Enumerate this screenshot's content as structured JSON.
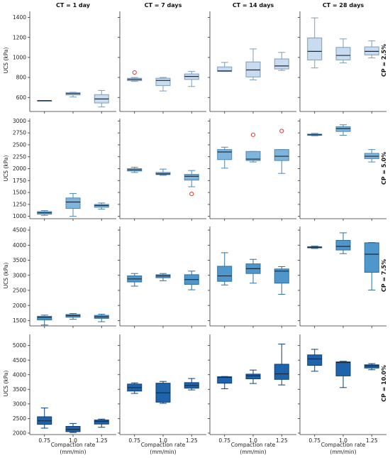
{
  "figure": {
    "column_titles": [
      "CT = 1 day",
      "CT = 7 days",
      "CT = 14 days",
      "CT = 28 days"
    ],
    "row_titles": [
      "CP = 2.5%",
      "CP = 5.0%",
      "CP = 7.5%",
      "CP = 10.0%"
    ],
    "ylabel": "UCS (kPa)",
    "xlabel_line1": "Compaction rate",
    "xlabel_line2": "(mm/min)",
    "x_tick_labels": [
      "0.75",
      "1.0",
      "1.25"
    ],
    "row_fill_colors": [
      "#c9dcef",
      "#80b5db",
      "#4f97cb",
      "#1f64ab"
    ],
    "row_stroke_colors": [
      "#7d9cbc",
      "#4f88b4",
      "#2e6e9e",
      "#0d3f78"
    ],
    "outlier_color": "#e03a2f"
  },
  "chart_data": [
    {
      "type": "box",
      "row": 0,
      "ylim": [
        460,
        1460
      ],
      "yticks": [
        600,
        800,
        1000,
        1200,
        1400
      ],
      "categories": [
        "0.75",
        "1.0",
        "1.25"
      ],
      "panels": [
        {
          "column": "CT = 1 day",
          "boxes": [
            {
              "whislo": 568,
              "q1": 568,
              "med": 568,
              "q3": 570,
              "whishi": 570,
              "fliers": []
            },
            {
              "whislo": 605,
              "q1": 625,
              "med": 638,
              "q3": 648,
              "whishi": 652,
              "fliers": []
            },
            {
              "whislo": 505,
              "q1": 545,
              "med": 585,
              "q3": 628,
              "whishi": 670,
              "fliers": []
            }
          ]
        },
        {
          "column": "CT = 7 days",
          "boxes": [
            {
              "whislo": 760,
              "q1": 768,
              "med": 780,
              "q3": 792,
              "whishi": 800,
              "fliers": [
                850
              ]
            },
            {
              "whislo": 665,
              "q1": 718,
              "med": 770,
              "q3": 792,
              "whishi": 800,
              "fliers": []
            },
            {
              "whislo": 710,
              "q1": 780,
              "med": 810,
              "q3": 835,
              "whishi": 860,
              "fliers": []
            }
          ]
        },
        {
          "column": "CT = 14 days",
          "boxes": [
            {
              "whislo": 860,
              "q1": 860,
              "med": 865,
              "q3": 905,
              "whishi": 950,
              "fliers": []
            },
            {
              "whislo": 775,
              "q1": 805,
              "med": 875,
              "q3": 955,
              "whishi": 1085,
              "fliers": []
            },
            {
              "whislo": 870,
              "q1": 885,
              "med": 915,
              "q3": 985,
              "whishi": 1050,
              "fliers": []
            }
          ]
        },
        {
          "column": "CT = 28 days",
          "boxes": [
            {
              "whislo": 895,
              "q1": 975,
              "med": 1060,
              "q3": 1195,
              "whishi": 1395,
              "fliers": []
            },
            {
              "whislo": 945,
              "q1": 975,
              "med": 1020,
              "q3": 1100,
              "whishi": 1185,
              "fliers": []
            },
            {
              "whislo": 995,
              "q1": 1025,
              "med": 1060,
              "q3": 1105,
              "whishi": 1165,
              "fliers": []
            }
          ]
        }
      ]
    },
    {
      "type": "box",
      "row": 1,
      "ylim": [
        950,
        3050
      ],
      "yticks": [
        1000,
        1250,
        1500,
        1750,
        2000,
        2250,
        2500,
        2750,
        3000
      ],
      "categories": [
        "0.75",
        "1.0",
        "1.25"
      ],
      "panels": [
        {
          "column": "CT = 1 day",
          "boxes": [
            {
              "whislo": 1020,
              "q1": 1045,
              "med": 1075,
              "q3": 1100,
              "whishi": 1120,
              "fliers": []
            },
            {
              "whislo": 1000,
              "q1": 1165,
              "med": 1300,
              "q3": 1385,
              "whishi": 1480,
              "fliers": []
            },
            {
              "whislo": 1150,
              "q1": 1190,
              "med": 1225,
              "q3": 1250,
              "whishi": 1280,
              "fliers": []
            }
          ]
        },
        {
          "column": "CT = 7 days",
          "boxes": [
            {
              "whislo": 1920,
              "q1": 1950,
              "med": 1975,
              "q3": 2000,
              "whishi": 2030,
              "fliers": []
            },
            {
              "whislo": 1860,
              "q1": 1875,
              "med": 1890,
              "q3": 1920,
              "whishi": 1990,
              "fliers": []
            },
            {
              "whislo": 1620,
              "q1": 1760,
              "med": 1840,
              "q3": 1880,
              "whishi": 1960,
              "fliers": [
                1470
              ]
            }
          ]
        },
        {
          "column": "CT = 14 days",
          "boxes": [
            {
              "whislo": 2010,
              "q1": 2190,
              "med": 2350,
              "q3": 2400,
              "whishi": 2450,
              "fliers": []
            },
            {
              "whislo": 2140,
              "q1": 2170,
              "med": 2200,
              "q3": 2360,
              "whishi": 2360,
              "fliers": [
                2710
              ]
            },
            {
              "whislo": 1900,
              "q1": 2170,
              "med": 2260,
              "q3": 2400,
              "whishi": 2400,
              "fliers": [
                2790
              ]
            }
          ]
        },
        {
          "column": "CT = 28 days",
          "boxes": [
            {
              "whislo": 2690,
              "q1": 2700,
              "med": 2710,
              "q3": 2725,
              "whishi": 2740,
              "fliers": []
            },
            {
              "whislo": 2700,
              "q1": 2780,
              "med": 2840,
              "q3": 2880,
              "whishi": 2920,
              "fliers": []
            },
            {
              "whislo": 2140,
              "q1": 2210,
              "med": 2260,
              "q3": 2320,
              "whishi": 2400,
              "fliers": []
            }
          ]
        }
      ]
    },
    {
      "type": "box",
      "row": 2,
      "ylim": [
        1320,
        4620
      ],
      "yticks": [
        1500,
        2000,
        2500,
        3000,
        3500,
        4000,
        4500
      ],
      "categories": [
        "0.75",
        "1.0",
        "1.25"
      ],
      "panels": [
        {
          "column": "CT = 1 day",
          "boxes": [
            {
              "whislo": 1350,
              "q1": 1520,
              "med": 1600,
              "q3": 1640,
              "whishi": 1680,
              "fliers": []
            },
            {
              "whislo": 1540,
              "q1": 1610,
              "med": 1660,
              "q3": 1700,
              "whishi": 1730,
              "fliers": []
            },
            {
              "whislo": 1460,
              "q1": 1570,
              "med": 1620,
              "q3": 1670,
              "whishi": 1710,
              "fliers": []
            }
          ]
        },
        {
          "column": "CT = 7 days",
          "boxes": [
            {
              "whislo": 2640,
              "q1": 2780,
              "med": 2880,
              "q3": 2980,
              "whishi": 3060,
              "fliers": []
            },
            {
              "whislo": 2820,
              "q1": 2920,
              "med": 2980,
              "q3": 3020,
              "whishi": 3060,
              "fliers": []
            },
            {
              "whislo": 2520,
              "q1": 2700,
              "med": 2860,
              "q3": 3020,
              "whishi": 3140,
              "fliers": []
            }
          ]
        },
        {
          "column": "CT = 14 days",
          "boxes": [
            {
              "whislo": 2680,
              "q1": 2800,
              "med": 2980,
              "q3": 3300,
              "whishi": 3750,
              "fliers": []
            },
            {
              "whislo": 2740,
              "q1": 3060,
              "med": 3220,
              "q3": 3380,
              "whishi": 3530,
              "fliers": []
            },
            {
              "whislo": 2370,
              "q1": 2740,
              "med": 3140,
              "q3": 3210,
              "whishi": 3290,
              "fliers": []
            }
          ]
        },
        {
          "column": "CT = 28 days",
          "boxes": [
            {
              "whislo": 3890,
              "q1": 3910,
              "med": 3930,
              "q3": 3950,
              "whishi": 3970,
              "fliers": []
            },
            {
              "whislo": 3720,
              "q1": 3840,
              "med": 3960,
              "q3": 4160,
              "whishi": 4410,
              "fliers": []
            },
            {
              "whislo": 2510,
              "q1": 3100,
              "med": 3700,
              "q3": 4080,
              "whishi": 4090,
              "fliers": []
            }
          ]
        }
      ]
    },
    {
      "type": "box",
      "row": 3,
      "ylim": [
        1950,
        5380
      ],
      "yticks": [
        2000,
        2500,
        3000,
        3500,
        4000,
        4500,
        5000
      ],
      "categories": [
        "0.75",
        "1.0",
        "1.25"
      ],
      "panels": [
        {
          "column": "CT = 1 day",
          "boxes": [
            {
              "whislo": 2170,
              "q1": 2300,
              "med": 2420,
              "q3": 2560,
              "whishi": 2860,
              "fliers": []
            },
            {
              "whislo": 2020,
              "q1": 2050,
              "med": 2130,
              "q3": 2230,
              "whishi": 2330,
              "fliers": []
            },
            {
              "whislo": 2200,
              "q1": 2310,
              "med": 2400,
              "q3": 2450,
              "whishi": 2480,
              "fliers": []
            }
          ]
        },
        {
          "column": "CT = 7 days",
          "boxes": [
            {
              "whislo": 3360,
              "q1": 3440,
              "med": 3560,
              "q3": 3680,
              "whishi": 3720,
              "fliers": []
            },
            {
              "whislo": 3020,
              "q1": 3060,
              "med": 3380,
              "q3": 3710,
              "whishi": 3770,
              "fliers": []
            },
            {
              "whislo": 3480,
              "q1": 3540,
              "med": 3630,
              "q3": 3730,
              "whishi": 3870,
              "fliers": []
            }
          ]
        },
        {
          "column": "CT = 14 days",
          "boxes": [
            {
              "whislo": 3520,
              "q1": 3710,
              "med": 3910,
              "q3": 3930,
              "whishi": 3940,
              "fliers": []
            },
            {
              "whislo": 3700,
              "q1": 3860,
              "med": 3960,
              "q3": 4020,
              "whishi": 4160,
              "fliers": []
            },
            {
              "whislo": 3650,
              "q1": 3840,
              "med": 4030,
              "q3": 4360,
              "whishi": 5050,
              "fliers": []
            }
          ]
        },
        {
          "column": "CT = 28 days",
          "boxes": [
            {
              "whislo": 4120,
              "q1": 4320,
              "med": 4540,
              "q3": 4680,
              "whishi": 4870,
              "fliers": []
            },
            {
              "whislo": 3560,
              "q1": 3960,
              "med": 4420,
              "q3": 4440,
              "whishi": 4460,
              "fliers": []
            },
            {
              "whislo": 4170,
              "q1": 4230,
              "med": 4300,
              "q3": 4340,
              "whishi": 4380,
              "fliers": []
            }
          ]
        }
      ]
    }
  ]
}
